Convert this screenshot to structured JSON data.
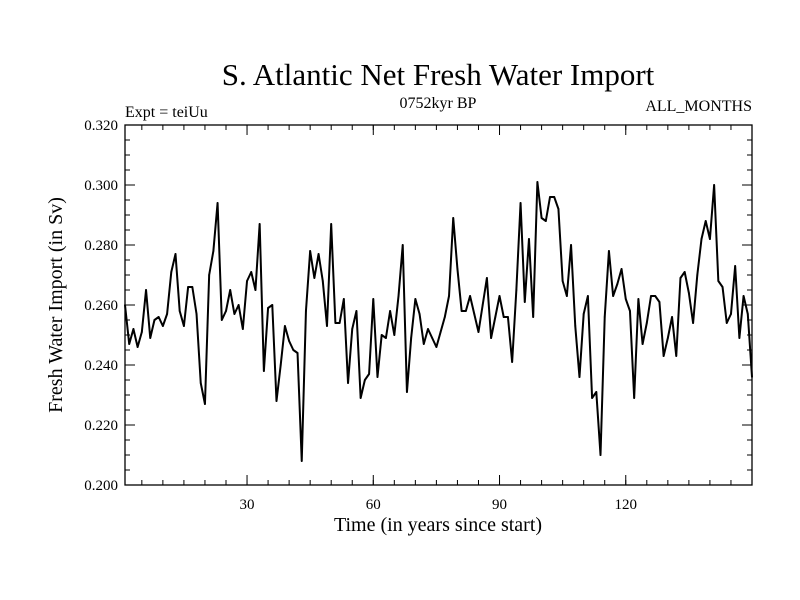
{
  "chart_data": {
    "type": "line",
    "title": "S. Atlantic Net Fresh Water Import",
    "subtitle_left": "Expt = teiUu",
    "subtitle_center": "0752kyr BP",
    "subtitle_right": "ALL_MONTHS",
    "xlabel": "Time (in years since start)",
    "ylabel": "Fresh Water Import (in Sv)",
    "xlim": [
      1,
      150
    ],
    "ylim": [
      0.2,
      0.32
    ],
    "xticks": [
      30,
      60,
      90,
      120
    ],
    "yticks": [
      0.2,
      0.22,
      0.24,
      0.26,
      0.28,
      0.3,
      0.32
    ],
    "ytick_labels": [
      "0.200",
      "0.220",
      "0.240",
      "0.260",
      "0.280",
      "0.300",
      "0.320"
    ],
    "x_minor_step": 5,
    "y_minor_step": 0.005,
    "series": [
      {
        "name": "Fresh Water Import",
        "x": [
          1,
          2,
          3,
          4,
          5,
          6,
          7,
          8,
          9,
          10,
          11,
          12,
          13,
          14,
          15,
          16,
          17,
          18,
          19,
          20,
          21,
          22,
          23,
          24,
          25,
          26,
          27,
          28,
          29,
          30,
          31,
          32,
          33,
          34,
          35,
          36,
          37,
          38,
          39,
          40,
          41,
          42,
          43,
          44,
          45,
          46,
          47,
          48,
          49,
          50,
          51,
          52,
          53,
          54,
          55,
          56,
          57,
          58,
          59,
          60,
          61,
          62,
          63,
          64,
          65,
          66,
          67,
          68,
          69,
          70,
          71,
          72,
          73,
          74,
          75,
          76,
          77,
          78,
          79,
          80,
          81,
          82,
          83,
          84,
          85,
          86,
          87,
          88,
          89,
          90,
          91,
          92,
          93,
          94,
          95,
          96,
          97,
          98,
          99,
          100,
          101,
          102,
          103,
          104,
          105,
          106,
          107,
          108,
          109,
          110,
          111,
          112,
          113,
          114,
          115,
          116,
          117,
          118,
          119,
          120,
          121,
          122,
          123,
          124,
          125,
          126,
          127,
          128,
          129,
          130,
          131,
          132,
          133,
          134,
          135,
          136,
          137,
          138,
          139,
          140,
          141,
          142,
          143,
          144,
          145,
          146,
          147,
          148,
          149,
          150
        ],
        "values": [
          0.26,
          0.247,
          0.252,
          0.246,
          0.251,
          0.265,
          0.249,
          0.255,
          0.256,
          0.253,
          0.257,
          0.271,
          0.277,
          0.258,
          0.253,
          0.266,
          0.266,
          0.257,
          0.234,
          0.227,
          0.27,
          0.278,
          0.294,
          0.255,
          0.258,
          0.265,
          0.257,
          0.26,
          0.252,
          0.268,
          0.271,
          0.265,
          0.287,
          0.238,
          0.259,
          0.26,
          0.228,
          0.24,
          0.253,
          0.248,
          0.245,
          0.244,
          0.208,
          0.258,
          0.278,
          0.269,
          0.277,
          0.268,
          0.253,
          0.287,
          0.254,
          0.254,
          0.262,
          0.234,
          0.252,
          0.258,
          0.229,
          0.235,
          0.237,
          0.262,
          0.236,
          0.25,
          0.249,
          0.258,
          0.25,
          0.263,
          0.28,
          0.231,
          0.249,
          0.262,
          0.257,
          0.247,
          0.252,
          0.249,
          0.246,
          0.251,
          0.256,
          0.263,
          0.289,
          0.272,
          0.258,
          0.258,
          0.263,
          0.257,
          0.251,
          0.26,
          0.269,
          0.249,
          0.256,
          0.263,
          0.256,
          0.256,
          0.241,
          0.265,
          0.294,
          0.261,
          0.282,
          0.256,
          0.301,
          0.289,
          0.288,
          0.296,
          0.296,
          0.292,
          0.268,
          0.263,
          0.28,
          0.253,
          0.236,
          0.257,
          0.263,
          0.229,
          0.231,
          0.21,
          0.256,
          0.278,
          0.263,
          0.267,
          0.272,
          0.262,
          0.258,
          0.229,
          0.262,
          0.247,
          0.254,
          0.263,
          0.263,
          0.261,
          0.243,
          0.249,
          0.256,
          0.243,
          0.269,
          0.271,
          0.264,
          0.254,
          0.27,
          0.282,
          0.288,
          0.282,
          0.3,
          0.268,
          0.266,
          0.254,
          0.257,
          0.273,
          0.249,
          0.263,
          0.257,
          0.236
        ]
      }
    ]
  }
}
